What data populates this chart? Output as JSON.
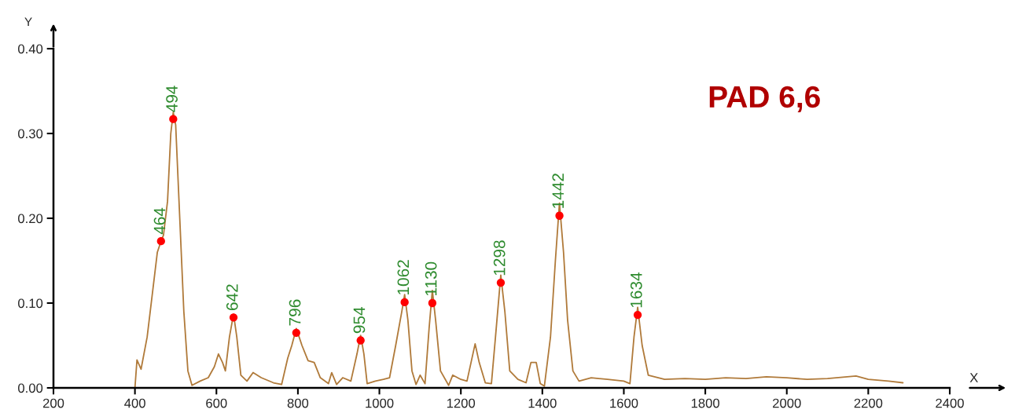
{
  "chart_data": {
    "type": "line",
    "xlabel": "X",
    "ylabel": "Y",
    "xlim": [
      200,
      2400
    ],
    "xticks": [
      200,
      400,
      600,
      800,
      1000,
      1200,
      1400,
      1600,
      1800,
      2000,
      2200,
      2400
    ],
    "ylim": [
      0,
      0.4
    ],
    "yticks": [
      {
        "value": 0,
        "label": "0.00"
      },
      {
        "value": 0.1,
        "label": "0.10"
      },
      {
        "value": 0.2,
        "label": "0.20"
      },
      {
        "value": 0.3,
        "label": "0.30"
      },
      {
        "value": 0.4,
        "label": "0.40"
      }
    ],
    "series": [
      {
        "color": "#b07a3a",
        "marker": "none",
        "x": [
          400,
          405,
          415,
          430,
          445,
          455,
          464,
          470,
          480,
          488,
          494,
          500,
          510,
          520,
          530,
          540,
          560,
          580,
          595,
          605,
          615,
          622,
          632,
          642,
          650,
          660,
          675,
          690,
          710,
          740,
          760,
          775,
          785,
          796,
          810,
          825,
          840,
          855,
          875,
          883,
          895,
          910,
          930,
          945,
          954,
          962,
          970,
          990,
          1010,
          1025,
          1040,
          1055,
          1062,
          1070,
          1080,
          1090,
          1100,
          1112,
          1122,
          1130,
          1138,
          1150,
          1170,
          1180,
          1200,
          1215,
          1225,
          1235,
          1245,
          1260,
          1275,
          1285,
          1298,
          1308,
          1320,
          1340,
          1360,
          1372,
          1385,
          1395,
          1405,
          1420,
          1432,
          1442,
          1452,
          1462,
          1475,
          1490,
          1520,
          1560,
          1600,
          1615,
          1625,
          1634,
          1645,
          1660,
          1700,
          1750,
          1800,
          1850,
          1900,
          1950,
          2000,
          2050,
          2100,
          2170,
          2200,
          2250,
          2285
        ],
        "values": [
          0.0,
          0.033,
          0.022,
          0.06,
          0.12,
          0.16,
          0.173,
          0.18,
          0.22,
          0.3,
          0.325,
          0.31,
          0.2,
          0.09,
          0.02,
          0.003,
          0.008,
          0.012,
          0.025,
          0.04,
          0.03,
          0.02,
          0.06,
          0.087,
          0.06,
          0.015,
          0.008,
          0.018,
          0.012,
          0.006,
          0.004,
          0.035,
          0.05,
          0.07,
          0.05,
          0.032,
          0.03,
          0.012,
          0.005,
          0.018,
          0.004,
          0.012,
          0.008,
          0.04,
          0.062,
          0.04,
          0.005,
          0.008,
          0.01,
          0.012,
          0.05,
          0.09,
          0.11,
          0.08,
          0.02,
          0.004,
          0.015,
          0.005,
          0.07,
          0.115,
          0.08,
          0.02,
          0.003,
          0.015,
          0.01,
          0.008,
          0.03,
          0.052,
          0.03,
          0.006,
          0.005,
          0.06,
          0.133,
          0.09,
          0.02,
          0.01,
          0.006,
          0.03,
          0.03,
          0.005,
          0.002,
          0.06,
          0.15,
          0.218,
          0.16,
          0.08,
          0.02,
          0.008,
          0.012,
          0.01,
          0.008,
          0.005,
          0.06,
          0.095,
          0.05,
          0.015,
          0.01,
          0.011,
          0.01,
          0.012,
          0.011,
          0.013,
          0.012,
          0.01,
          0.011,
          0.014,
          0.01,
          0.008,
          0.006
        ]
      },
      {
        "type": "scatter",
        "color": "#ff0000",
        "marker": "circle",
        "x": [
          464,
          494,
          642,
          796,
          954,
          1062,
          1130,
          1298,
          1442,
          1634
        ],
        "values": [
          0.173,
          0.317,
          0.083,
          0.065,
          0.056,
          0.101,
          0.1,
          0.124,
          0.203,
          0.086
        ]
      }
    ],
    "annotations": [
      {
        "text": "464",
        "x": 464,
        "y": 0.173
      },
      {
        "text": "494",
        "x": 494,
        "y": 0.317
      },
      {
        "text": "642",
        "x": 642,
        "y": 0.083
      },
      {
        "text": "796",
        "x": 796,
        "y": 0.065
      },
      {
        "text": "954",
        "x": 954,
        "y": 0.056
      },
      {
        "text": "1062",
        "x": 1062,
        "y": 0.101
      },
      {
        "text": "1130",
        "x": 1130,
        "y": 0.1
      },
      {
        "text": "1298",
        "x": 1298,
        "y": 0.124
      },
      {
        "text": "1442",
        "x": 1442,
        "y": 0.203
      },
      {
        "text": "1634",
        "x": 1634,
        "y": 0.086
      },
      "PAD 6,6"
    ]
  }
}
